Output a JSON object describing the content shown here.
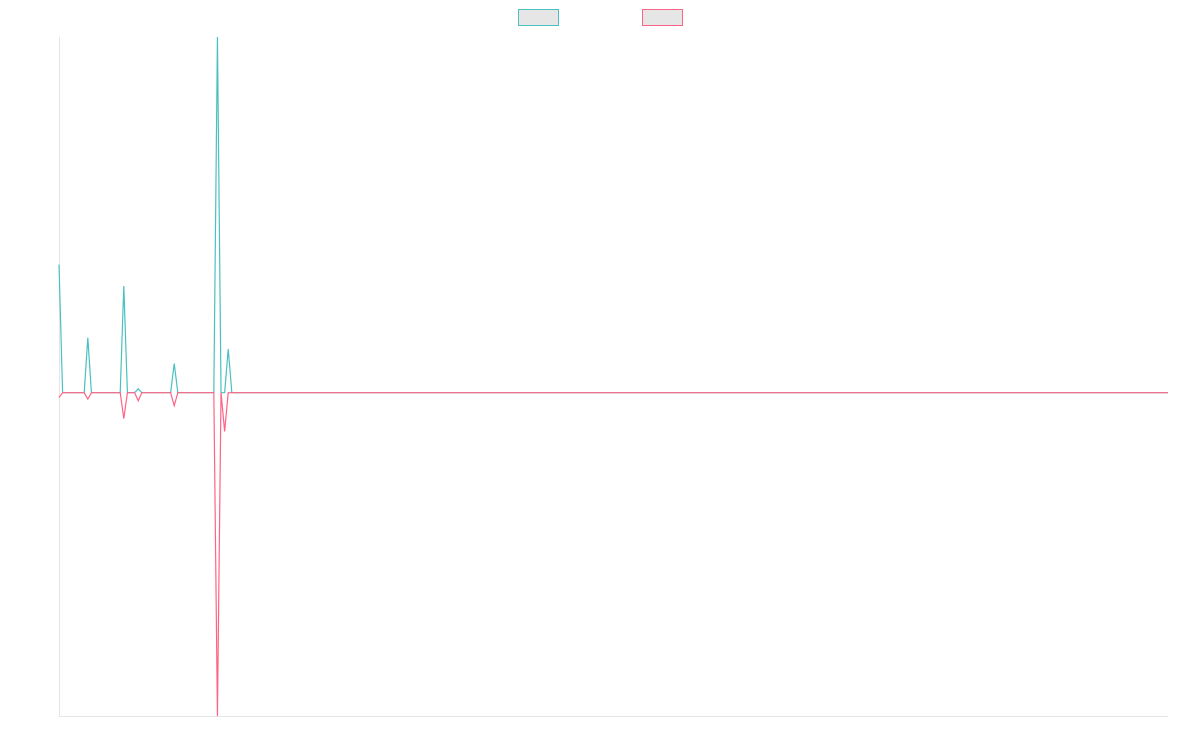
{
  "chart_data": {
    "type": "line",
    "x": [
      0,
      1,
      7,
      8,
      9,
      17,
      18,
      19,
      21,
      22,
      23,
      31,
      32,
      33,
      43,
      44,
      45,
      46,
      47,
      48,
      308
    ],
    "series": [
      {
        "color": "#4bc0c0",
        "values": [
          39.6,
          0,
          0,
          17,
          0,
          0,
          33,
          0,
          0,
          1.2,
          0,
          0,
          9,
          0,
          0,
          110,
          0,
          0,
          13.5,
          0,
          0
        ]
      },
      {
        "color": "#ff6384",
        "values": [
          -1.5,
          0,
          0,
          -2,
          0,
          0,
          -8,
          0,
          0,
          -2.5,
          0,
          0,
          -4,
          0,
          0,
          -100,
          0,
          -12,
          0,
          0,
          0
        ]
      }
    ],
    "xlim": [
      0,
      308
    ],
    "ylim": [
      -100,
      110
    ],
    "legend": "top"
  }
}
